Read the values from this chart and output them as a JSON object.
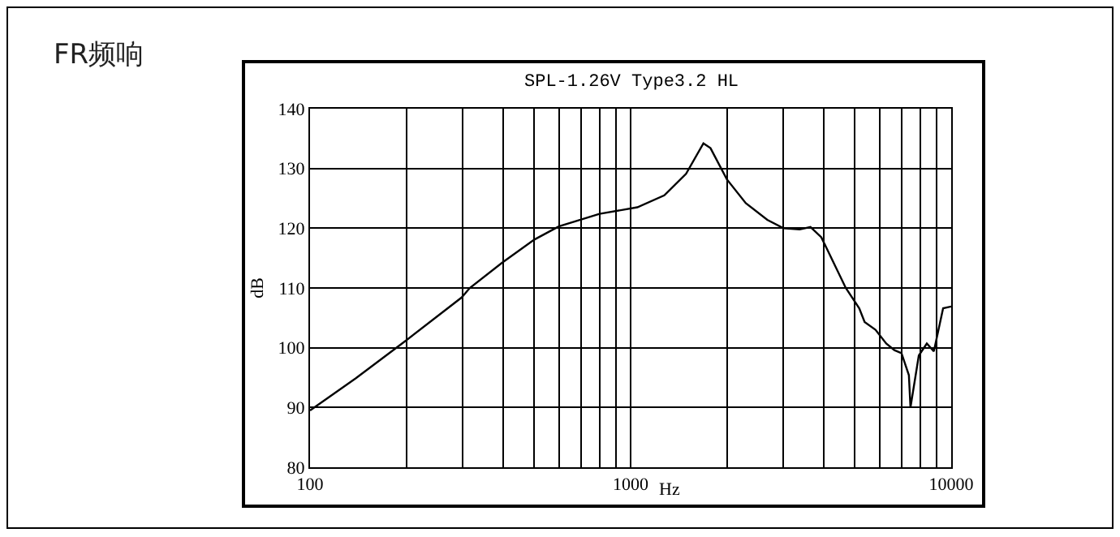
{
  "chart_data": {
    "type": "line",
    "title": "FR频响",
    "subtitle": "SPL-1.26V Type3.2 HL",
    "xlabel": "Hz",
    "ylabel": "dB",
    "log": "x",
    "grid": true,
    "legend": false,
    "marker": "none",
    "line_style": "solid",
    "x": [
      100,
      139,
      197,
      297,
      315,
      397,
      501,
      597,
      800,
      1050,
      1274,
      1489,
      1687,
      1775,
      1995,
      2287,
      2669,
      2998,
      3367,
      3640,
      3933,
      4690,
      5166,
      5370,
      5807,
      6270,
      6650,
      6998,
      7380,
      7465,
      7925,
      8395,
      8830,
      9437,
      10000
    ],
    "series": [
      {
        "color": "#000000",
        "values": [
          89.5,
          94.9,
          101,
          108.4,
          110,
          114.2,
          118.1,
          120.3,
          122.4,
          123.5,
          125.5,
          129.1,
          134.2,
          133.4,
          128.2,
          124.2,
          121.4,
          120,
          119.8,
          120.2,
          118.5,
          110,
          106.6,
          104.3,
          103,
          100.7,
          99.6,
          99.1,
          95.4,
          90,
          98.7,
          100.7,
          99.4,
          106.6,
          106.9
        ]
      }
    ],
    "xlim": [
      100,
      10000
    ],
    "xticks": [
      100,
      {
        "value": 200,
        "label": null
      },
      {
        "value": 300,
        "label": null
      },
      {
        "value": 400,
        "label": null
      },
      {
        "value": 500,
        "label": null
      },
      {
        "value": 600,
        "label": null
      },
      {
        "value": 700,
        "label": null
      },
      {
        "value": 800,
        "label": null
      },
      {
        "value": 900,
        "label": null
      },
      1000,
      {
        "value": 2000,
        "label": null
      },
      {
        "value": 3000,
        "label": null
      },
      {
        "value": 4000,
        "label": null
      },
      {
        "value": 5000,
        "label": null
      },
      {
        "value": 6000,
        "label": null
      },
      {
        "value": 7000,
        "label": null
      },
      {
        "value": 8000,
        "label": null
      },
      {
        "value": 9000,
        "label": null
      },
      10000
    ],
    "ylim": [
      80,
      140
    ],
    "yticks": [
      80,
      90,
      100,
      110,
      120,
      130,
      140
    ]
  }
}
